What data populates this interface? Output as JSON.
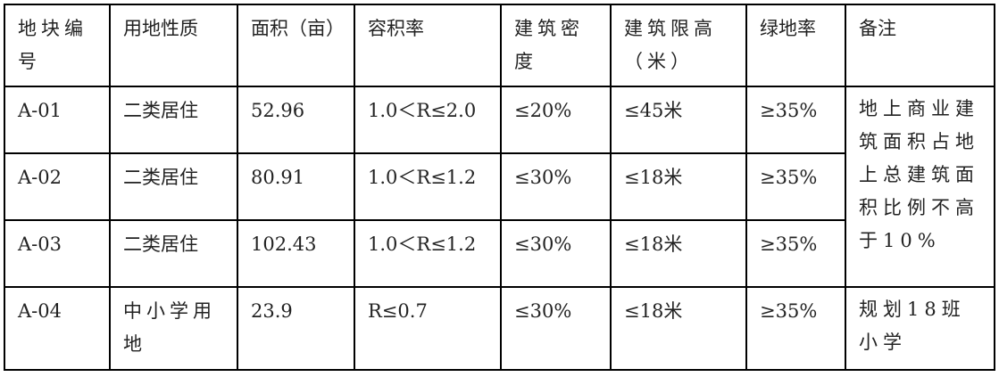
{
  "table": {
    "headers": [
      "地块编号",
      "用地性质",
      "面积（亩）",
      "容积率",
      "建筑密度",
      "建筑限高（米）",
      "绿地率",
      "备注"
    ],
    "rows": [
      {
        "id": "A-01",
        "use": "二类居住",
        "area": "52.96",
        "far": "1.0＜R≤2.0",
        "density": "≤20%",
        "height": "≤45米",
        "green": "≥35%"
      },
      {
        "id": "A-02",
        "use": "二类居住",
        "area": "80.91",
        "far": "1.0＜R≤1.2",
        "density": "≤30%",
        "height": "≤18米",
        "green": "≥35%"
      },
      {
        "id": "A-03",
        "use": "二类居住",
        "area": "102.43",
        "far": "1.0＜R≤1.2",
        "density": "≤30%",
        "height": "≤18米",
        "green": "≥35%"
      },
      {
        "id": "A-04",
        "use": "中小学用地",
        "area": "23.9",
        "far": "R≤0.7",
        "density": "≤30%",
        "height": "≤18米",
        "green": "≥35%",
        "note": "规划18班小学"
      }
    ],
    "merged_note": "地上商业建筑面积占地上总建筑面积比例不高于10%"
  }
}
